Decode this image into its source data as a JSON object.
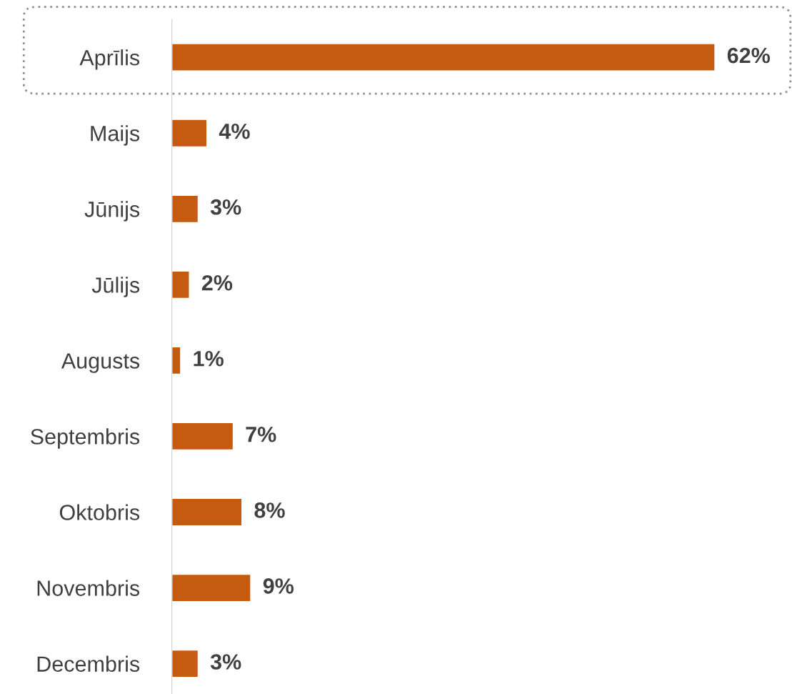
{
  "chart_data": {
    "type": "bar",
    "orientation": "horizontal",
    "categories": [
      "Aprīlis",
      "Maijs",
      "Jūnijs",
      "Jūlijs",
      "Augusts",
      "Septembris",
      "Oktobris",
      "Novembris",
      "Decembris"
    ],
    "values": [
      62,
      4,
      3,
      2,
      1,
      7,
      8,
      9,
      3
    ],
    "value_labels": [
      "62%",
      "4%",
      "3%",
      "2%",
      "1%",
      "7%",
      "8%",
      "9%",
      "3%"
    ],
    "color": "#c55a11",
    "tick_labels": "y",
    "grid": false,
    "legend": false
  }
}
